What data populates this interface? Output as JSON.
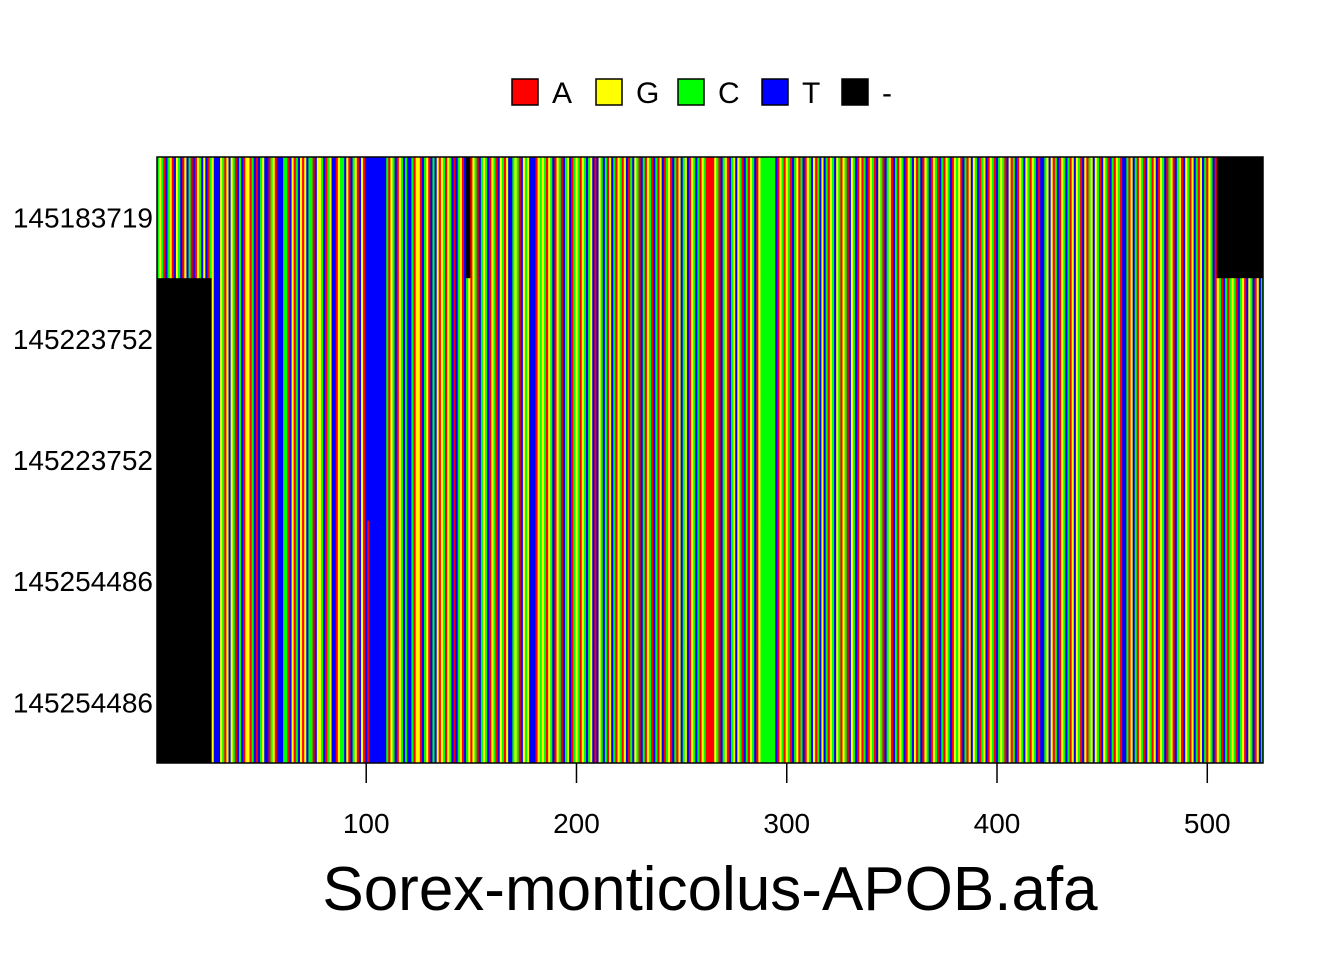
{
  "chart_data": {
    "type": "heatmap",
    "title": "Sorex-monticolus-APOB.afa",
    "xlabel": "",
    "ylabel": "",
    "rows": [
      "145183719",
      "145223752",
      "145223752",
      "145254486",
      "145254486"
    ],
    "xlim": [
      1,
      526
    ],
    "x_ticks": [
      100,
      200,
      300,
      400,
      500
    ],
    "legend": {
      "placement": "top",
      "entries": [
        {
          "label": "A",
          "color": "#ff0000"
        },
        {
          "label": "G",
          "color": "#ffff00"
        },
        {
          "label": "C",
          "color": "#00ff00"
        },
        {
          "label": "T",
          "color": "#0000ff"
        },
        {
          "label": "-",
          "color": "#000000"
        }
      ]
    },
    "gap_regions": [
      {
        "row": 0,
        "start": 148,
        "end": 149
      },
      {
        "row": 0,
        "start": 505,
        "end": 526
      },
      {
        "row": 1,
        "start": 1,
        "end": 26
      },
      {
        "row": 2,
        "start": 1,
        "end": 26
      },
      {
        "row": 3,
        "start": 1,
        "end": 26
      },
      {
        "row": 4,
        "start": 1,
        "end": 26
      }
    ],
    "consensus": "CGCATCGATGCTAGTCATAGCTGTACGTTTGCAGTGCATCTAGGACTATCGTTACGATTTCCATGACTGAGTCCATGGCTACGTTAGCCTGATCGATGATTTTTTTTTTCAGCTAGCTCTTCAGGATCGATCTGAGCAGCTATCGATCGAGCATCGCTAGCATGCAGTTCGCATGCGTTTAGCGCAGCTAGCATCGTACGCAGCTCGTATGCTCAGTCAGCAGTACTGCATCAGCATCAGTACGATCAGTCGTAGCTCAGCAAAAGCATCGATCGTGCATCAGCTAGCCCCCCCTAGCAGCATCGACTAGCTGACTGTCAGCTGCAGCATGCTAGACTAGCATGCATCGATCAGCTAGCTGACTAGCTAGCATCAGCTAGCGATCAGTGCTACGTAGCATCGCATGACTAGCTGCAGCTATTCGTGACTAGCTCAGTGCATGACGTGCATGCATCAGCATTCAGTCAGCATGCAGTAGCTACGATCGATGCAGTCAGTCAGCTAGCATCA",
    "variants": [
      {
        "row": 3,
        "pos": 101,
        "base": "A"
      },
      {
        "row": 4,
        "pos": 101,
        "base": "A"
      },
      {
        "row": 3,
        "pos": 363,
        "base": "C"
      },
      {
        "row": 4,
        "pos": 363,
        "base": "C"
      },
      {
        "row": 3,
        "pos": 381,
        "base": "C"
      },
      {
        "row": 4,
        "pos": 381,
        "base": "C"
      }
    ]
  }
}
